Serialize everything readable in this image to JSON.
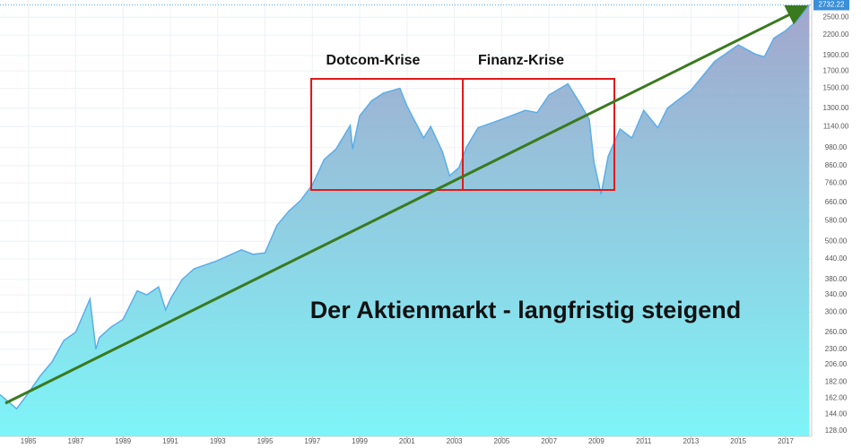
{
  "chart_data": {
    "type": "area",
    "log_scale": true,
    "grid": true,
    "xlim": [
      1983.8,
      2018.1
    ],
    "ylim": [
      123,
      2830
    ],
    "xticks": [
      1985,
      1987,
      1989,
      1991,
      1993,
      1995,
      1997,
      1999,
      2001,
      2003,
      2005,
      2007,
      2009,
      2011,
      2013,
      2015,
      2017
    ],
    "yticks": [
      {
        "value": 2500,
        "label": "2500.00"
      },
      {
        "value": 2200,
        "label": "2200.00"
      },
      {
        "value": 1900,
        "label": "1900.00"
      },
      {
        "value": 1700,
        "label": "1700.00"
      },
      {
        "value": 1500,
        "label": "1500.00"
      },
      {
        "value": 1300,
        "label": "1300.00"
      },
      {
        "value": 1140,
        "label": "1140.00"
      },
      {
        "value": 980,
        "label": "980.00"
      },
      {
        "value": 860,
        "label": "860.00"
      },
      {
        "value": 760,
        "label": "760.00"
      },
      {
        "value": 660,
        "label": "660.00"
      },
      {
        "value": 580,
        "label": "580.00"
      },
      {
        "value": 500,
        "label": "500.00"
      },
      {
        "value": 440,
        "label": "440.00"
      },
      {
        "value": 380,
        "label": "380.00"
      },
      {
        "value": 340,
        "label": "340.00"
      },
      {
        "value": 300,
        "label": "300.00"
      },
      {
        "value": 260,
        "label": "260.00"
      },
      {
        "value": 230,
        "label": "230.00"
      },
      {
        "value": 206,
        "label": "206.00"
      },
      {
        "value": 182,
        "label": "182.00"
      },
      {
        "value": 162,
        "label": "162.00"
      },
      {
        "value": 144,
        "label": "144.00"
      },
      {
        "value": 128,
        "label": "128.00"
      }
    ],
    "last_price": 2732.22,
    "annotations": [
      "Dotcom-Krise",
      "Finanz-Krise",
      "Der Aktienmarkt - langfristig steigend"
    ],
    "series": [
      {
        "color": "#5aaee8",
        "x": [
          1983.8,
          1984.5,
          1985,
          1985.5,
          1986,
          1986.5,
          1987,
          1987.6,
          1987.85,
          1988,
          1988.5,
          1989,
          1989.6,
          1990,
          1990.5,
          1990.8,
          1991,
          1991.5,
          1992,
          1993,
          1994,
          1994.5,
          1995,
          1995.5,
          1996,
          1996.5,
          1997,
          1997.5,
          1998,
          1998.6,
          1998.7,
          1999,
          1999.5,
          2000,
          2000.7,
          2001,
          2001.7,
          2002,
          2002.5,
          2002.8,
          2003.2,
          2003.5,
          2004,
          2005,
          2006,
          2006.5,
          2007,
          2007.8,
          2008.3,
          2008.7,
          2008.9,
          2009.2,
          2009.5,
          2010,
          2010.5,
          2011,
          2011.6,
          2012,
          2013,
          2014,
          2015,
          2015.7,
          2016.1,
          2016.5,
          2017,
          2017.5,
          2018
        ],
        "values": [
          166,
          150,
          168,
          190,
          210,
          245,
          260,
          330,
          230,
          250,
          270,
          285,
          350,
          340,
          360,
          305,
          330,
          380,
          410,
          435,
          470,
          455,
          460,
          560,
          620,
          670,
          750,
          900,
          970,
          1150,
          970,
          1230,
          1370,
          1450,
          1500,
          1320,
          1050,
          1140,
          950,
          800,
          850,
          980,
          1130,
          1200,
          1280,
          1260,
          1430,
          1550,
          1350,
          1200,
          880,
          700,
          920,
          1120,
          1050,
          1280,
          1130,
          1300,
          1480,
          1820,
          2050,
          1920,
          1880,
          2150,
          2270,
          2450,
          2732
        ]
      }
    ]
  }
}
